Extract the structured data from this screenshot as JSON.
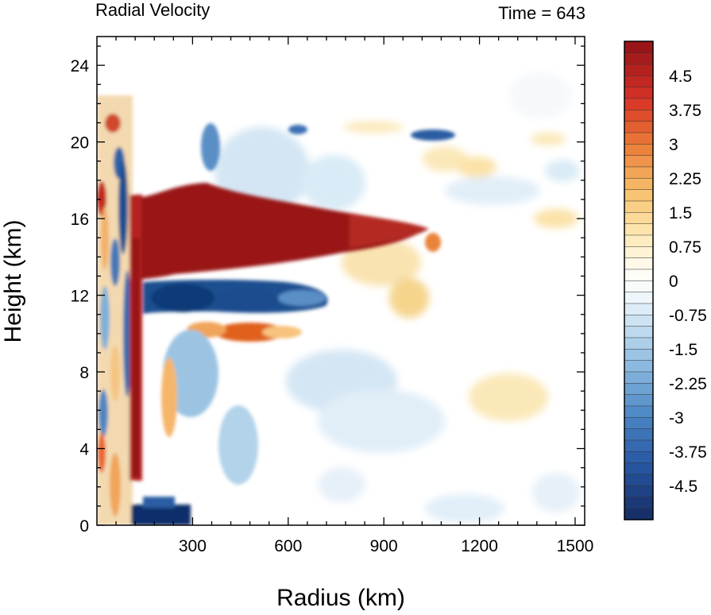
{
  "chart_data": {
    "type": "heatmap",
    "title": "Radial Velocity",
    "time_label": "Time = 643",
    "xlabel": "Radius (km)",
    "ylabel": "Height (km)",
    "xlim": [
      0,
      1530
    ],
    "ylim": [
      0,
      25.5
    ],
    "x_ticks": [
      300,
      600,
      900,
      1200,
      1500
    ],
    "y_ticks": [
      0,
      4,
      8,
      12,
      16,
      20,
      24
    ],
    "colorbar": {
      "min": -5.25,
      "max": 5.25,
      "step": 0.25,
      "labels": [
        "4.5",
        "3.75",
        "3",
        "2.25",
        "1.5",
        "0.75",
        "0",
        "-0.75",
        "-1.5",
        "-2.25",
        "-3",
        "-3.75",
        "-4.5"
      ],
      "label_values": [
        4.5,
        3.75,
        3,
        2.25,
        1.5,
        0.75,
        0,
        -0.75,
        -1.5,
        -2.25,
        -3,
        -3.75,
        -4.5
      ]
    },
    "features": [
      {
        "name": "upper outflow jet",
        "r_range": [
          140,
          1000
        ],
        "z_range": [
          12.5,
          17
        ],
        "value": 5.5
      },
      {
        "name": "inflow layer below jet",
        "r_range": [
          150,
          600
        ],
        "z_range": [
          10.5,
          12.5
        ],
        "value": -4.5
      },
      {
        "name": "boundary layer inflow",
        "r_range": [
          110,
          280
        ],
        "z_range": [
          0,
          1
        ],
        "value": -5.5
      },
      {
        "name": "eyewall outflow column",
        "r_range": [
          110,
          150
        ],
        "z_range": [
          0,
          17
        ],
        "value": 5
      }
    ]
  }
}
